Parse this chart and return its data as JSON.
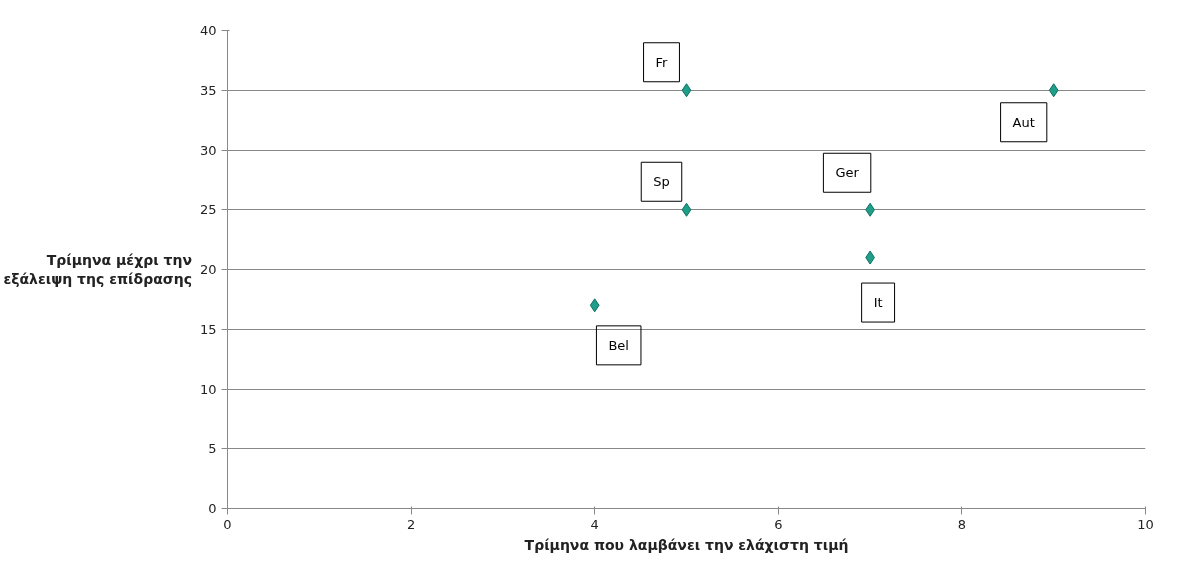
{
  "chart_data": {
    "type": "scatter",
    "xlabel": "Τρίμηνα που λαμβάνει την ελάχιστη τιμή",
    "ylabel": "Τρίμηνα μέχρι την εξάλειψη της επίδρασης",
    "x": [
      5,
      5,
      7,
      7,
      4,
      9
    ],
    "series": [
      {
        "color": "#1f9e89",
        "values": [
          35,
          25,
          25,
          21,
          17,
          35
        ]
      }
    ],
    "marker": "diamond",
    "xlim": [
      0,
      10
    ],
    "xticks": [
      0,
      2,
      4,
      6,
      8,
      10
    ],
    "ylim": [
      0,
      40
    ],
    "yticks": [
      0,
      5,
      10,
      15,
      20,
      25,
      30,
      35,
      40
    ],
    "grid": "y",
    "annotations": [
      {
        "text": "Fr",
        "x": 5,
        "y": 35
      },
      {
        "text": "Sp",
        "x": 5,
        "y": 25
      },
      {
        "text": "Ger",
        "x": 7,
        "y": 25
      },
      {
        "text": "It",
        "x": 7,
        "y": 21
      },
      {
        "text": "Bel",
        "x": 4,
        "y": 17
      },
      {
        "text": "Aut",
        "x": 9,
        "y": 35
      }
    ]
  }
}
